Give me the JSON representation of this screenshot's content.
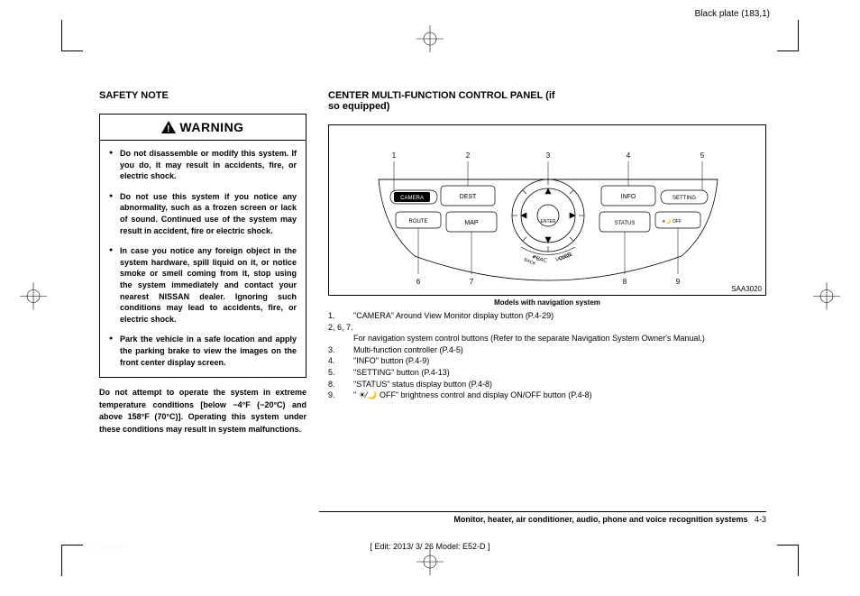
{
  "header": {
    "plate": "Black plate (183,1)"
  },
  "left": {
    "title": "SAFETY NOTE",
    "warning_label": "WARNING",
    "bullets": [
      "Do not disassemble or modify this system. If you do, it may result in accidents, fire, or electric shock.",
      "Do not use this system if you notice any abnormality, such as a frozen screen or lack of sound. Continued use of the system may result in accident, fire or electric shock.",
      "In case you notice any foreign object in the system hardware, spill liquid on it, or notice smoke or smell coming from it, stop using the system immediately and contact your nearest NISSAN dealer. Ignoring such conditions may lead to accidents, fire, or electric shock.",
      "Park the vehicle in a safe location and apply the parking brake to view the images on the front center display screen."
    ],
    "below": "Do not attempt to operate the system in extreme temperature conditions [below −4°F (−20°C) and above 158°F (70°C)]. Operating this system under these conditions may result in system malfunctions."
  },
  "right": {
    "title": "CENTER MULTI-FUNCTION CONTROL PANEL (if so equipped)",
    "diagram_id": "SAA3020",
    "caption": "Models with navigation system",
    "buttons": {
      "camera": "CAMERA",
      "dest": "DEST",
      "info": "INFO",
      "setting": "SETTING",
      "route": "ROUTE",
      "map": "MAP",
      "status": "STATUS",
      "off": "OFF",
      "enter": "ENTER",
      "back": "BACK",
      "voice": "VOICE"
    },
    "callouts": [
      "1",
      "2",
      "3",
      "4",
      "5",
      "6",
      "7",
      "8",
      "9"
    ],
    "legend": [
      {
        "n": "1.",
        "t": "\"CAMERA\" Around View Monitor display button (P.4-29)"
      },
      {
        "n": "2, 6, 7.",
        "t": ""
      },
      {
        "n": "",
        "t": "For navigation system control buttons (Refer to the separate Navigation System Owner's Manual.)"
      },
      {
        "n": "3.",
        "t": "Multi-function controller (P.4-5)"
      },
      {
        "n": "4.",
        "t": "\"INFO\" button (P.4-9)"
      },
      {
        "n": "5.",
        "t": "\"SETTING\" button (P.4-13)"
      },
      {
        "n": "8.",
        "t": "\"STATUS\" status display button (P.4-8)"
      },
      {
        "n": "9.",
        "t": "\" ☀⁄🌙 OFF\" brightness control and display ON/OFF button (P.4-8)"
      }
    ]
  },
  "footer": {
    "section": "Monitor, heater, air conditioner, audio, phone and voice recognition systems",
    "pagenum": "4-3",
    "edit": "[ Edit: 2013/ 3/ 26   Model:  E52-D ]",
    "condition": "Condition:"
  }
}
